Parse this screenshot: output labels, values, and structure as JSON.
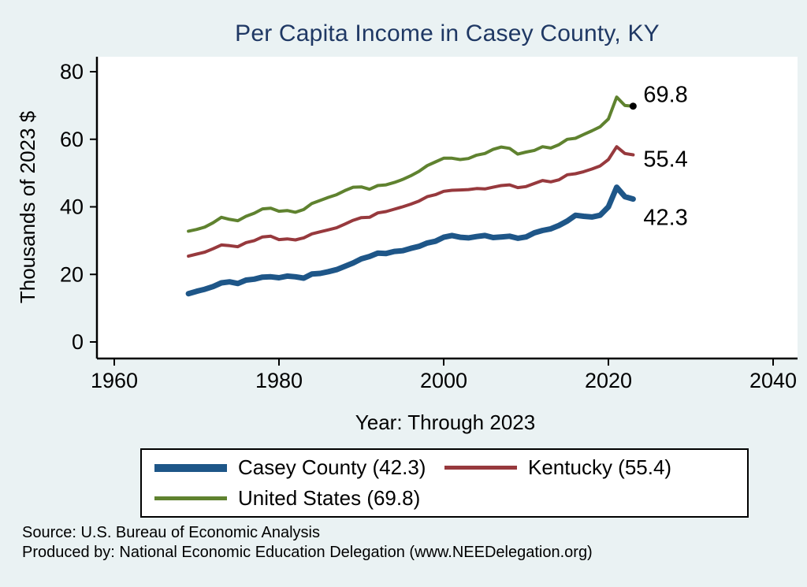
{
  "title": "Per Capita Income in Casey County, KY",
  "footer": {
    "line1": "Source: U.S. Bureau of Economic Analysis",
    "line2": "Produced by: National Economic Education Delegation (www.NEEDelegation.org)"
  },
  "colors": {
    "background": "#eaf2f3",
    "plot_background": "#ffffff",
    "title": "#1f3864",
    "axis": "#000000",
    "end_label": "#000000"
  },
  "chart_data": {
    "type": "line",
    "title": "Per Capita Income in Casey County, KY",
    "xlabel": "Year: Through 2023",
    "ylabel": "Thousands of 2023 $",
    "xlim": [
      1960,
      2040
    ],
    "ylim": [
      0,
      80
    ],
    "xticks": [
      1960,
      1980,
      2000,
      2020,
      2040
    ],
    "yticks": [
      0,
      20,
      40,
      60,
      80
    ],
    "grid": false,
    "legend_position": "bottom",
    "x": [
      1969,
      1970,
      1971,
      1972,
      1973,
      1974,
      1975,
      1976,
      1977,
      1978,
      1979,
      1980,
      1981,
      1982,
      1983,
      1984,
      1985,
      1986,
      1987,
      1988,
      1989,
      1990,
      1991,
      1992,
      1993,
      1994,
      1995,
      1996,
      1997,
      1998,
      1999,
      2000,
      2001,
      2002,
      2003,
      2004,
      2005,
      2006,
      2007,
      2008,
      2009,
      2010,
      2011,
      2012,
      2013,
      2014,
      2015,
      2016,
      2017,
      2018,
      2019,
      2020,
      2021,
      2022,
      2023
    ],
    "series": [
      {
        "name": "Casey County",
        "legend_label": "Casey County (42.3)",
        "color": "#1e5688",
        "line_width": 7,
        "end_label": "42.3",
        "end_marker": false,
        "values": [
          14.3,
          15.0,
          15.6,
          16.4,
          17.5,
          17.8,
          17.3,
          18.3,
          18.6,
          19.2,
          19.3,
          19.0,
          19.5,
          19.3,
          18.9,
          20.1,
          20.3,
          20.8,
          21.4,
          22.4,
          23.4,
          24.6,
          25.3,
          26.3,
          26.2,
          26.8,
          27.0,
          27.7,
          28.3,
          29.3,
          29.8,
          31.0,
          31.5,
          31.0,
          30.8,
          31.2,
          31.5,
          30.9,
          31.1,
          31.3,
          30.7,
          31.1,
          32.3,
          33.0,
          33.5,
          34.5,
          35.8,
          37.5,
          37.2,
          37.0,
          37.5,
          40.0,
          45.8,
          43.0,
          42.3
        ]
      },
      {
        "name": "Kentucky",
        "legend_label": "Kentucky (55.4)",
        "color": "#97393d",
        "line_width": 4,
        "end_label": "55.4",
        "end_marker": false,
        "values": [
          25.4,
          26.0,
          26.6,
          27.6,
          28.7,
          28.5,
          28.2,
          29.4,
          30.0,
          31.1,
          31.3,
          30.3,
          30.5,
          30.2,
          30.8,
          32.0,
          32.6,
          33.2,
          33.8,
          34.9,
          36.0,
          36.8,
          36.9,
          38.2,
          38.6,
          39.3,
          40.0,
          40.8,
          41.7,
          43.0,
          43.6,
          44.6,
          44.9,
          45.0,
          45.1,
          45.4,
          45.3,
          45.8,
          46.3,
          46.5,
          45.7,
          46.0,
          46.9,
          47.8,
          47.4,
          48.0,
          49.5,
          49.8,
          50.4,
          51.2,
          52.1,
          54.0,
          57.8,
          55.8,
          55.4
        ]
      },
      {
        "name": "United States",
        "legend_label": "United States (69.8)",
        "color": "#5f822f",
        "line_width": 4,
        "end_label": "69.8",
        "end_marker": true,
        "values": [
          32.8,
          33.3,
          34.0,
          35.3,
          36.9,
          36.3,
          35.9,
          37.2,
          38.1,
          39.4,
          39.6,
          38.7,
          38.9,
          38.4,
          39.2,
          41.0,
          41.9,
          42.8,
          43.6,
          44.8,
          45.8,
          45.9,
          45.2,
          46.3,
          46.5,
          47.2,
          48.1,
          49.2,
          50.5,
          52.2,
          53.3,
          54.4,
          54.4,
          54.0,
          54.3,
          55.3,
          55.8,
          57.0,
          57.7,
          57.3,
          55.6,
          56.2,
          56.7,
          57.8,
          57.4,
          58.4,
          60.0,
          60.3,
          61.4,
          62.5,
          63.7,
          66.0,
          72.5,
          70.0,
          69.8
        ]
      }
    ]
  }
}
